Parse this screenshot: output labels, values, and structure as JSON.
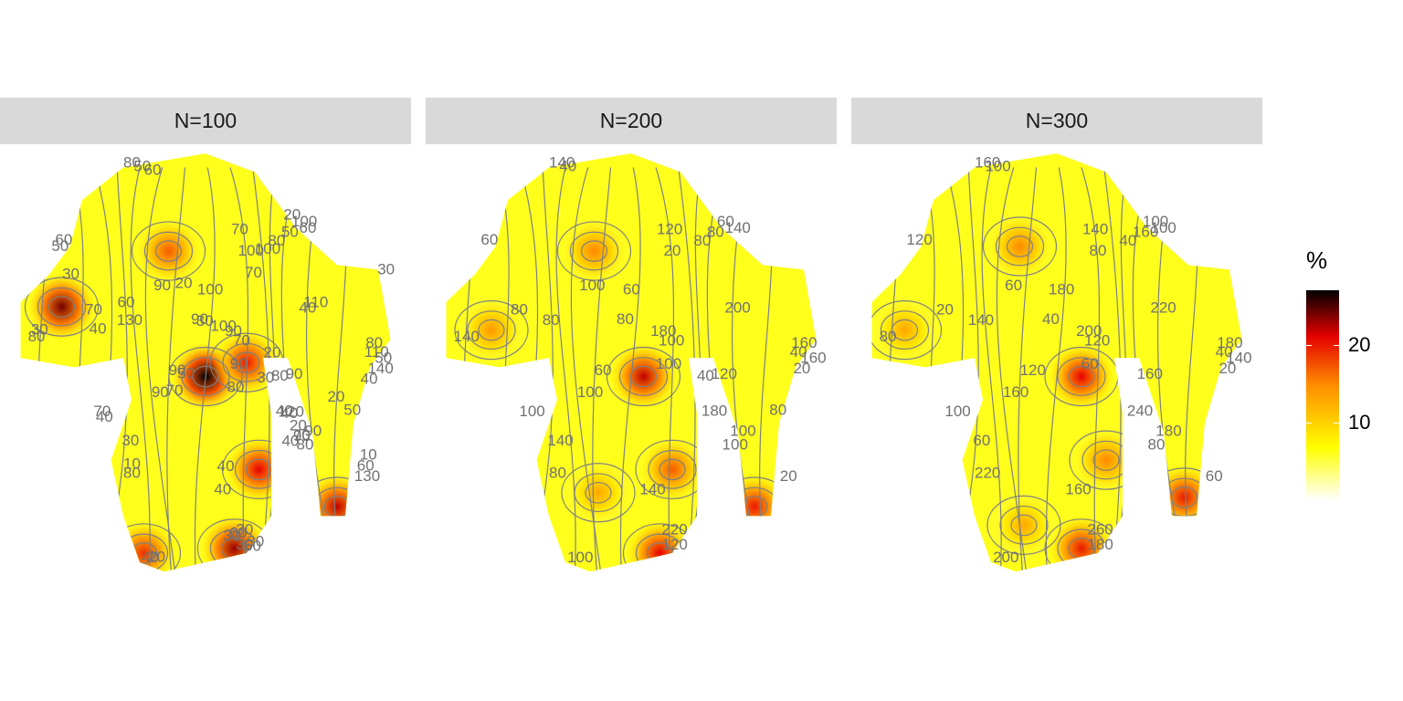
{
  "chart_data": {
    "type": "heatmap",
    "overlay": "contour lines with numeric labels",
    "colormap": [
      "#ffffff",
      "#ffff00",
      "#ff8c00",
      "#e60000",
      "#000000"
    ],
    "contour_color": "#808080",
    "legend": {
      "title": "%",
      "ticks": [
        10,
        20
      ],
      "range": [
        0,
        27
      ],
      "placement": "right"
    },
    "panels": [
      {
        "label": "N=100",
        "contour_labels": [
          "80",
          "70",
          "70",
          "50",
          "60",
          "80",
          "50",
          "90",
          "100",
          "130",
          "80",
          "90",
          "90",
          "40",
          "40",
          "30",
          "30",
          "40",
          "30",
          "40",
          "80",
          "130",
          "90",
          "90",
          "70",
          "80",
          "90",
          "90",
          "70",
          "60",
          "50",
          "100",
          "90",
          "80",
          "100",
          "110",
          "140",
          "80",
          "50",
          "60",
          "70",
          "90",
          "100",
          "110",
          "120",
          "60",
          "50",
          "40",
          "30",
          "20",
          "10",
          "60",
          "70",
          "50",
          "40",
          "30",
          "20",
          "30",
          "40",
          "50",
          "60",
          "70",
          "80",
          "100",
          "20",
          "30",
          "40",
          "30",
          "20",
          "10",
          "20",
          "40",
          "30",
          "20",
          "40",
          "30"
        ],
        "hotspots": [
          {
            "x": 0.15,
            "y": 0.35,
            "value": 24
          },
          {
            "x": 0.41,
            "y": 0.23,
            "value": 17
          },
          {
            "x": 0.5,
            "y": 0.5,
            "value": 27
          },
          {
            "x": 0.6,
            "y": 0.47,
            "value": 20
          },
          {
            "x": 0.63,
            "y": 0.7,
            "value": 21
          },
          {
            "x": 0.35,
            "y": 0.88,
            "value": 19
          },
          {
            "x": 0.57,
            "y": 0.87,
            "value": 23
          },
          {
            "x": 0.82,
            "y": 0.78,
            "value": 22
          }
        ]
      },
      {
        "label": "N=200",
        "contour_labels": [
          "140",
          "120",
          "100",
          "80",
          "140",
          "160",
          "160",
          "120",
          "60",
          "20",
          "100",
          "100",
          "180",
          "200",
          "180",
          "220",
          "140",
          "140",
          "120",
          "100",
          "80",
          "80",
          "100",
          "60",
          "100",
          "140",
          "100",
          "80",
          "80",
          "60",
          "40",
          "20",
          "100",
          "80",
          "60",
          "40",
          "20",
          "40",
          "80"
        ],
        "hotspots": [
          {
            "x": 0.41,
            "y": 0.23,
            "value": 15
          },
          {
            "x": 0.16,
            "y": 0.4,
            "value": 14
          },
          {
            "x": 0.53,
            "y": 0.5,
            "value": 22
          },
          {
            "x": 0.6,
            "y": 0.7,
            "value": 17
          },
          {
            "x": 0.42,
            "y": 0.75,
            "value": 13
          },
          {
            "x": 0.57,
            "y": 0.88,
            "value": 21
          },
          {
            "x": 0.8,
            "y": 0.78,
            "value": 20
          }
        ]
      },
      {
        "label": "N=300",
        "contour_labels": [
          "160",
          "140",
          "120",
          "160",
          "100",
          "180",
          "140",
          "160",
          "180",
          "60",
          "80",
          "180",
          "200",
          "220",
          "240",
          "260",
          "60",
          "160",
          "180",
          "200",
          "220",
          "140",
          "160",
          "120",
          "100",
          "80",
          "60",
          "40",
          "20",
          "120",
          "100",
          "80",
          "60",
          "40",
          "100",
          "40",
          "20"
        ],
        "hotspots": [
          {
            "x": 0.41,
            "y": 0.22,
            "value": 15
          },
          {
            "x": 0.13,
            "y": 0.4,
            "value": 13
          },
          {
            "x": 0.56,
            "y": 0.5,
            "value": 21
          },
          {
            "x": 0.62,
            "y": 0.68,
            "value": 15
          },
          {
            "x": 0.42,
            "y": 0.82,
            "value": 13
          },
          {
            "x": 0.56,
            "y": 0.87,
            "value": 20
          },
          {
            "x": 0.81,
            "y": 0.76,
            "value": 20
          }
        ]
      }
    ]
  }
}
